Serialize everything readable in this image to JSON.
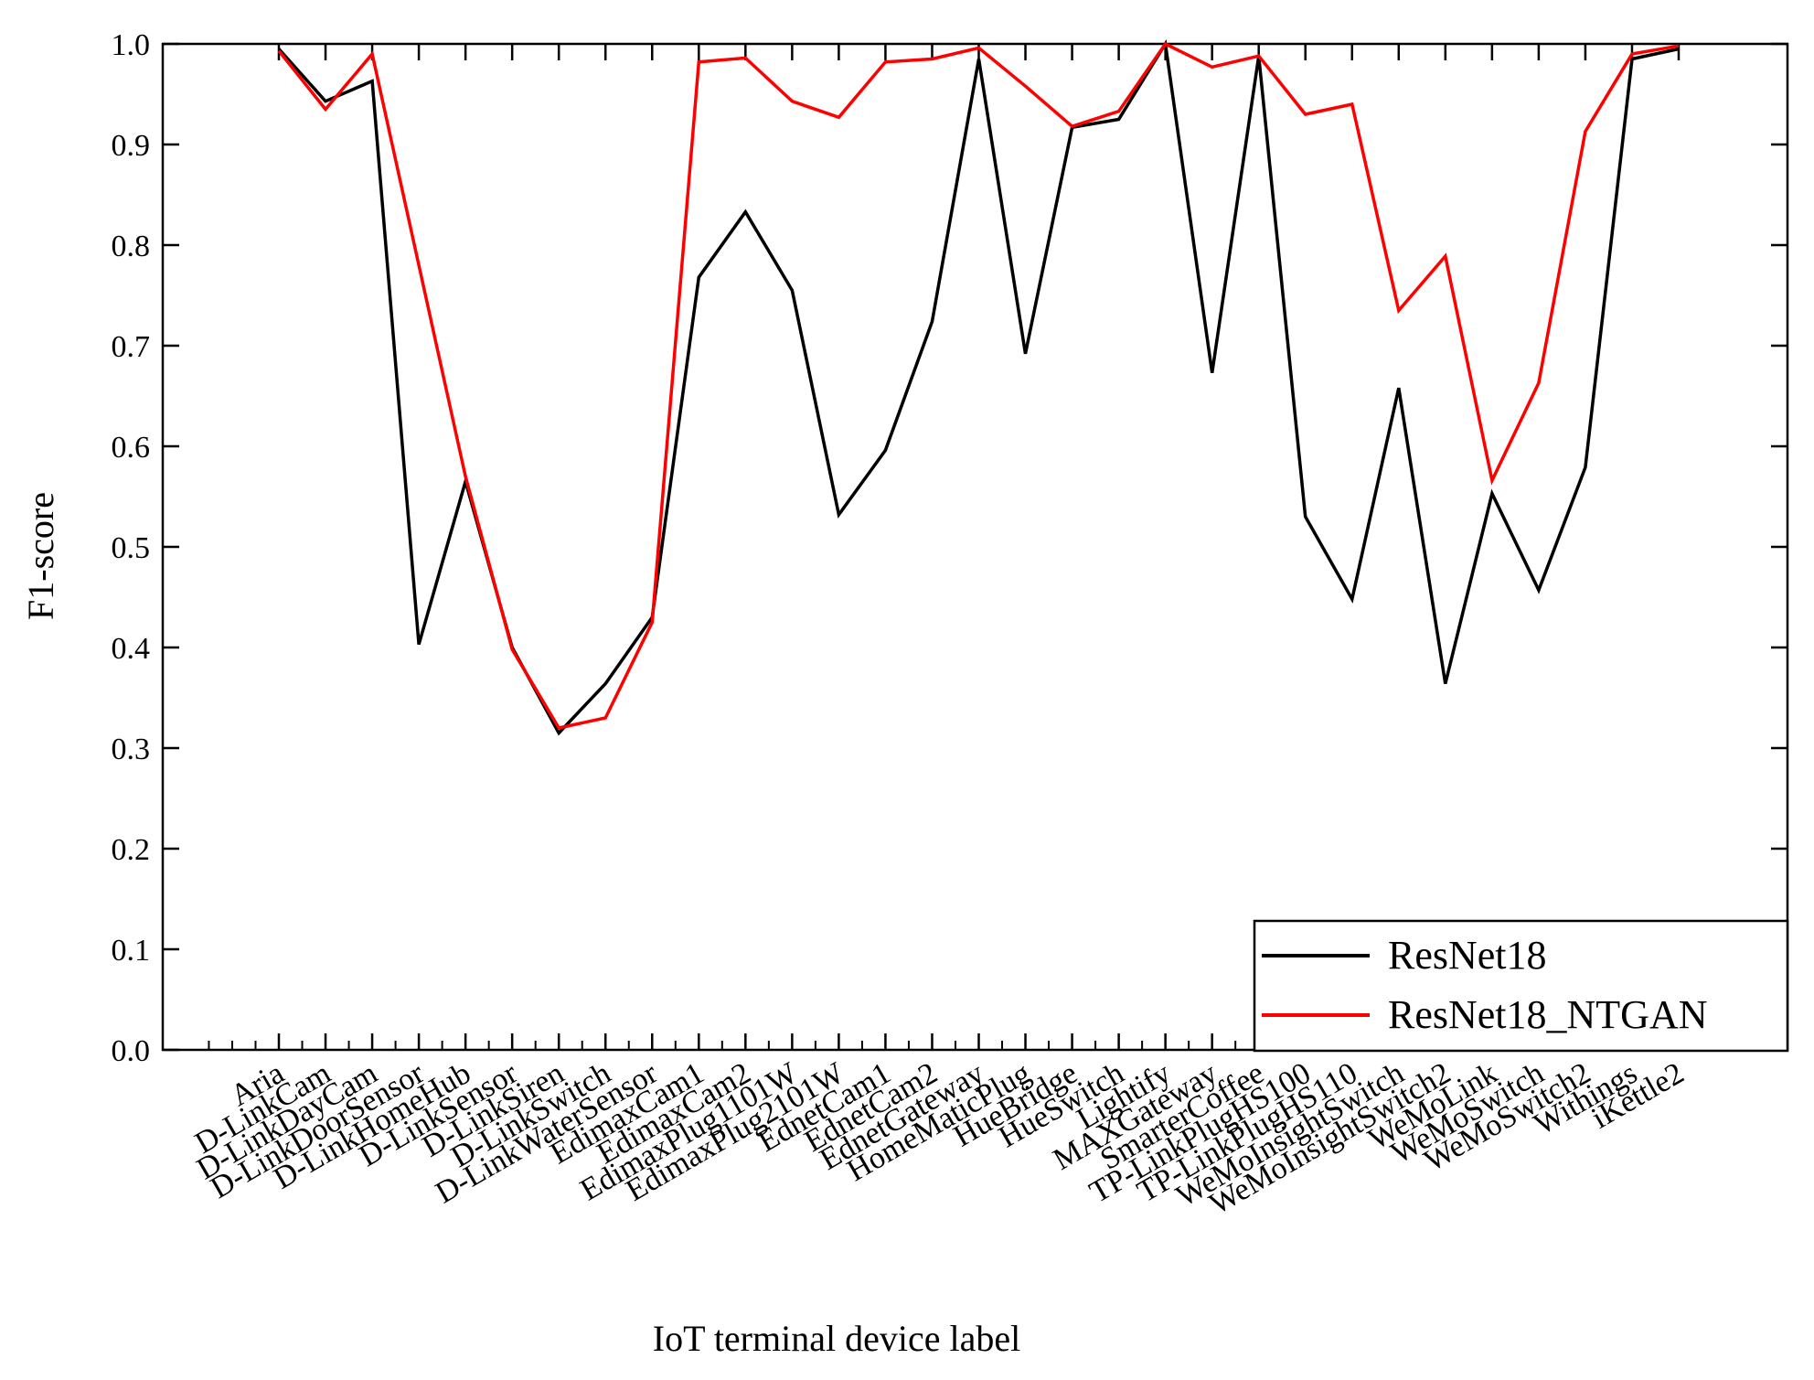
{
  "chart_data": {
    "type": "line",
    "title": "",
    "xlabel": "IoT terminal device label",
    "ylabel": "F1-score",
    "ylim": [
      0.0,
      1.0
    ],
    "yticks": [
      "0.0",
      "0.1",
      "0.2",
      "0.3",
      "0.4",
      "0.5",
      "0.6",
      "0.7",
      "0.8",
      "0.9",
      "1.0"
    ],
    "grid": false,
    "legend_position": "bottom-right",
    "categories": [
      "Aria",
      "D-LinkCam",
      "D-LinkDayCam",
      "D-LinkDoorSensor",
      "D-LinkHomeHub",
      "D-LinkSensor",
      "D-LinkSiren",
      "D-LinkSwitch",
      "D-LinkWaterSensor",
      "EdimaxCam1",
      "EdimaxCam2",
      "EdimaxPlug1101W",
      "EdimaxPlug2101W",
      "EdnetCam1",
      "EdnetCam2",
      "EdnetGateway",
      "HomeMaticPlug",
      "HueBridge",
      "HueSwitch",
      "Lightify",
      "MAXGateway",
      "SmarterCoffee",
      "TP-LinkPlugHS100",
      "TP-LinkPlugHS110",
      "WeMoInsightSwitch",
      "WeMoInsightSwitch2",
      "WeMoLink",
      "WeMoSwitch",
      "WeMoSwitch2",
      "Withings",
      "iKettle2"
    ],
    "series": [
      {
        "name": "ResNet18",
        "color": "#000000",
        "values": [
          0.995,
          0.943,
          0.963,
          0.403,
          0.565,
          0.4,
          0.315,
          0.364,
          0.43,
          0.768,
          0.833,
          0.755,
          0.532,
          0.596,
          0.724,
          0.985,
          0.692,
          0.917,
          0.925,
          1.0,
          0.673,
          0.988,
          0.53,
          0.448,
          0.658,
          0.364,
          0.553,
          0.457,
          0.579,
          0.985,
          0.995
        ]
      },
      {
        "name": "ResNet18_NTGAN",
        "color": "#ff0000",
        "values": [
          0.993,
          0.935,
          0.99,
          0.78,
          0.57,
          0.398,
          0.32,
          0.33,
          0.425,
          0.982,
          0.986,
          0.943,
          0.927,
          0.982,
          0.985,
          0.996,
          0.958,
          0.918,
          0.933,
          1.0,
          0.977,
          0.988,
          0.93,
          0.94,
          0.735,
          0.789,
          0.566,
          0.663,
          0.913,
          0.99,
          0.998
        ]
      }
    ]
  }
}
